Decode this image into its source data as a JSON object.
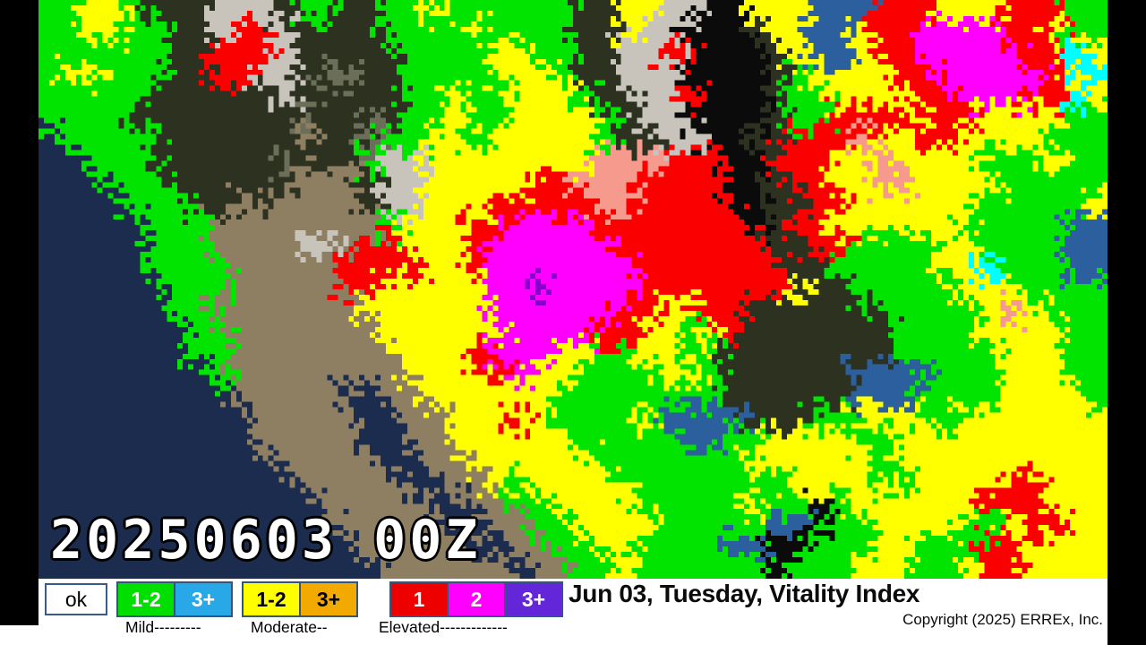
{
  "map": {
    "timestamp": "20250603 00Z",
    "palette": {
      "n": "#1b2c4f",
      "d": "#2c321f",
      "t": "#8e7f63",
      "q": "#6b6f5a",
      "w": "#c8c4bc",
      "g": "#00e400",
      "y": "#ffff00",
      "r": "#fb0000",
      "m": "#ff00ff",
      "p": "#8800cc",
      "s": "#f59a8c",
      "c": "#00ffff",
      "b": "#2b5f9e",
      "k": "#0b0b0b"
    },
    "grid": [
      "ggyygdddwwwdggddggyggggggddyywwkkyyybbbrrryyyrrrgg",
      "ggyyggddwrrwddddggggyggggddywwkkkdyybbyrrmmmmrrygg",
      "ggggggddrrrwdddddggggyyggddwwrrkkkdybbyrrmmmmmrrcy",
      "gyygggddrrwwdqqddggggyyygddwwwkkkkdgyyyyrrmmmmmryc",
      "gggggddddddwdddddggyggyyygddwwrkkkdggyyyyrrmmmrrcy",
      "ggggddddddddqddqdggyggyyyygdwwkkkkdggrrrryrryyyygg",
      "ngggggddddddtddqggyygyyyyygddwwkkddrrrsyyrryyyyggg",
      "nngggddddddqdddgwwyyyyyyyysssrrrkkrrryysyyyygggygg",
      "nnngggddddddtttdwwyyyyyrrsssrrrrkkdrryyssyyyyggggg",
      "nnnngggddtdttttdwwyyyrrrrrssrrrrkkddrryyyyyygggggy",
      "nnnnngggttttttttgyyyrrmmmmrrrrrrrkdrryyyyyygggggbb",
      "nnnnngggttttwwtrryyyrmmmmmmrrrrrrrddrrggggyyggggbb",
      "nnnnnggggtttttrrrryyrmmmmmmmrrrrrrrddgggggyycgggbb",
      "nnnnnngggtttttrryyyyymmpmmmmrrrrrrryddgggggyyygggg",
      "nnnnnnggtttttttyyyyyymmmmmmrryyrrddddddgggggysyggg",
      "nnnnnnnggtttttttyyyyyymmmmrryygyrdddddddggggyyyygg",
      "nnnnnnnggttttttttyyyrmmmyyggyyggddddddddgggggyyygg",
      "nnnnnnnngttttttttyyyyrmyyggggyygddddddbbbbgggyyygg",
      "nnnnnnnnntttttnnttyyyyyyggggggggddddddbbbggggyyyyg",
      "nnnnnnnnnntttttnnttyyyryggggybbbbdddggyyyggyyyyyyy",
      "nnnnnnnnnntttttnnttyyyyyygggggbbggyyyyggyyyyyyyyyy",
      "nnnnnnnnnnntttttnnttyyyyyygggggggyyyyyygyyyyyyyyyy",
      "nnnnnnnnnnnntttttnnttygyyyyggggggggyyyyggyyyyrryyy",
      "nnnnnnnnnnnnntttttnnttggyyyygggggyggkgyyyyyyrrryyy",
      "nnnnnnnnnnnnnntttttnnttggyyyygggggbbkggyyyyggyrryy",
      "nnnnnnnnnnnnnnntttttтnttggyyggggbbkkgggyygggrryyyy",
      "nnnnnnnnnnnnnnnnttttttnttggyggggggkgggyyyggyrryyyy"
    ]
  },
  "legend": {
    "ok_label": "ok",
    "groups": [
      {
        "name": "mild",
        "label": "Mild---------",
        "boxes": [
          {
            "text": "1-2",
            "color": "#00df00",
            "text_color": "#ffffff"
          },
          {
            "text": "3+",
            "color": "#29a8e8",
            "text_color": "#ffffff"
          }
        ]
      },
      {
        "name": "moderate",
        "label": "Moderate--",
        "boxes": [
          {
            "text": "1-2",
            "color": "#ffff00",
            "text_color": "#000000"
          },
          {
            "text": "3+",
            "color": "#f2a900",
            "text_color": "#000000"
          }
        ]
      },
      {
        "name": "elevated",
        "label": "Elevated-------------",
        "boxes": [
          {
            "text": "1",
            "color": "#ee0000",
            "text_color": "#ffffff"
          },
          {
            "text": "2",
            "color": "#ff00ff",
            "text_color": "#ffffff"
          },
          {
            "text": "3+",
            "color": "#6426d9",
            "text_color": "#ffffff"
          }
        ]
      }
    ]
  },
  "titles": {
    "heading": "Jun 03, Tuesday, Vitality Index",
    "copyright": "Copyright (2025) ERREx, Inc."
  }
}
